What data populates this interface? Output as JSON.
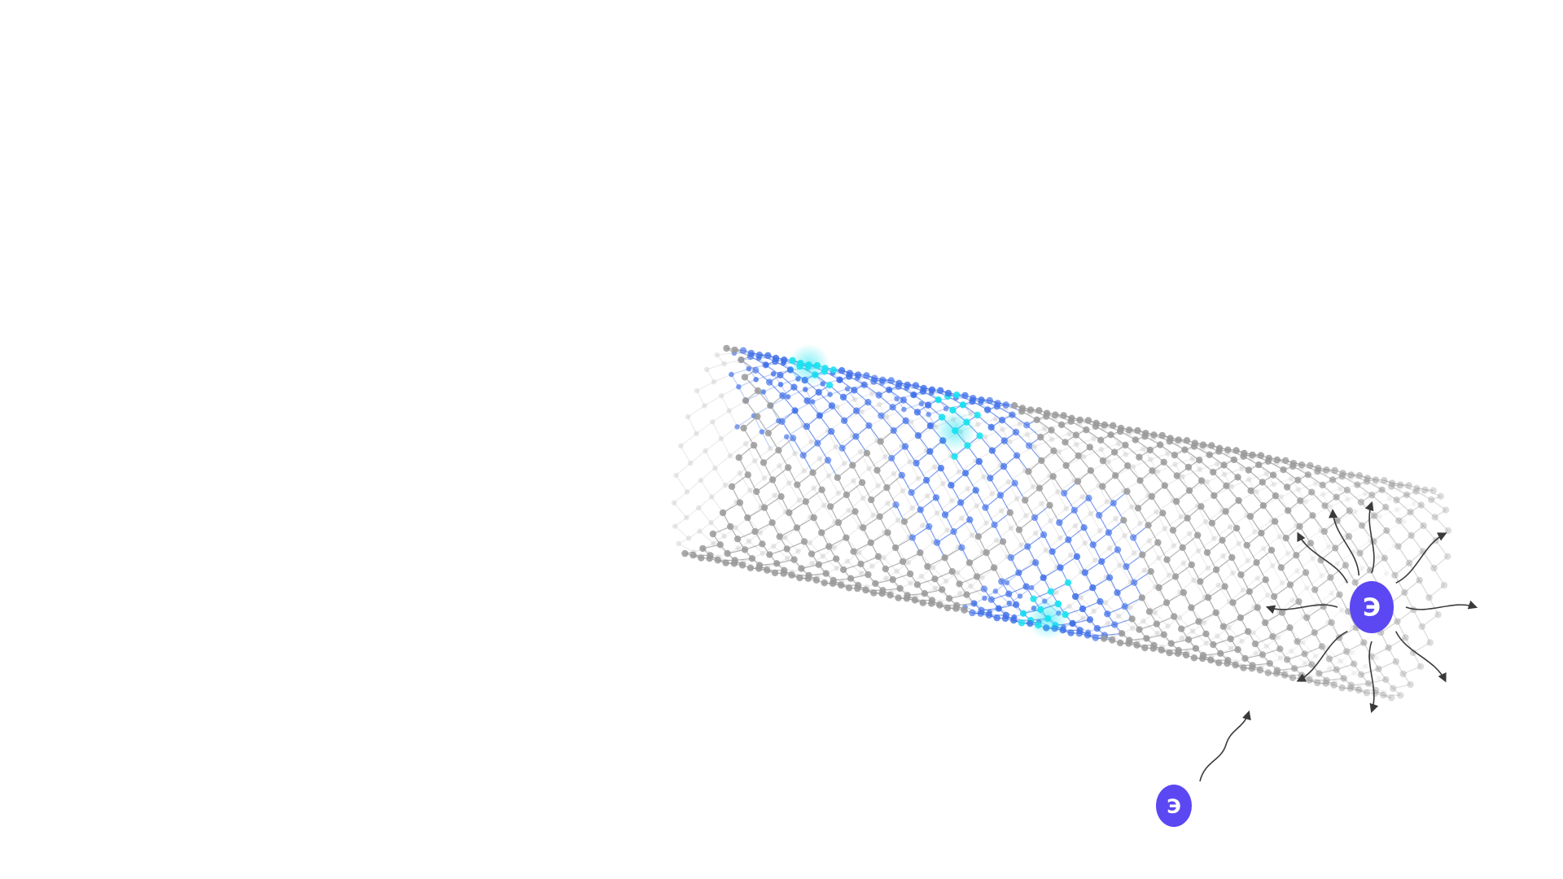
{
  "diagram": {
    "electron_incoming_label": "Э",
    "electron_scatter_label": "Э",
    "colors": {
      "lattice": "#9a9a9a",
      "lattice_faint": "#c8c8c8",
      "highlight_blue": "#3f6fe8",
      "highlight_cyan": "#19e3f0",
      "electron": "#5b48f2",
      "arrow": "#3a3a3a"
    },
    "highlighted_regions": 3,
    "scatter_arrows": 9
  }
}
